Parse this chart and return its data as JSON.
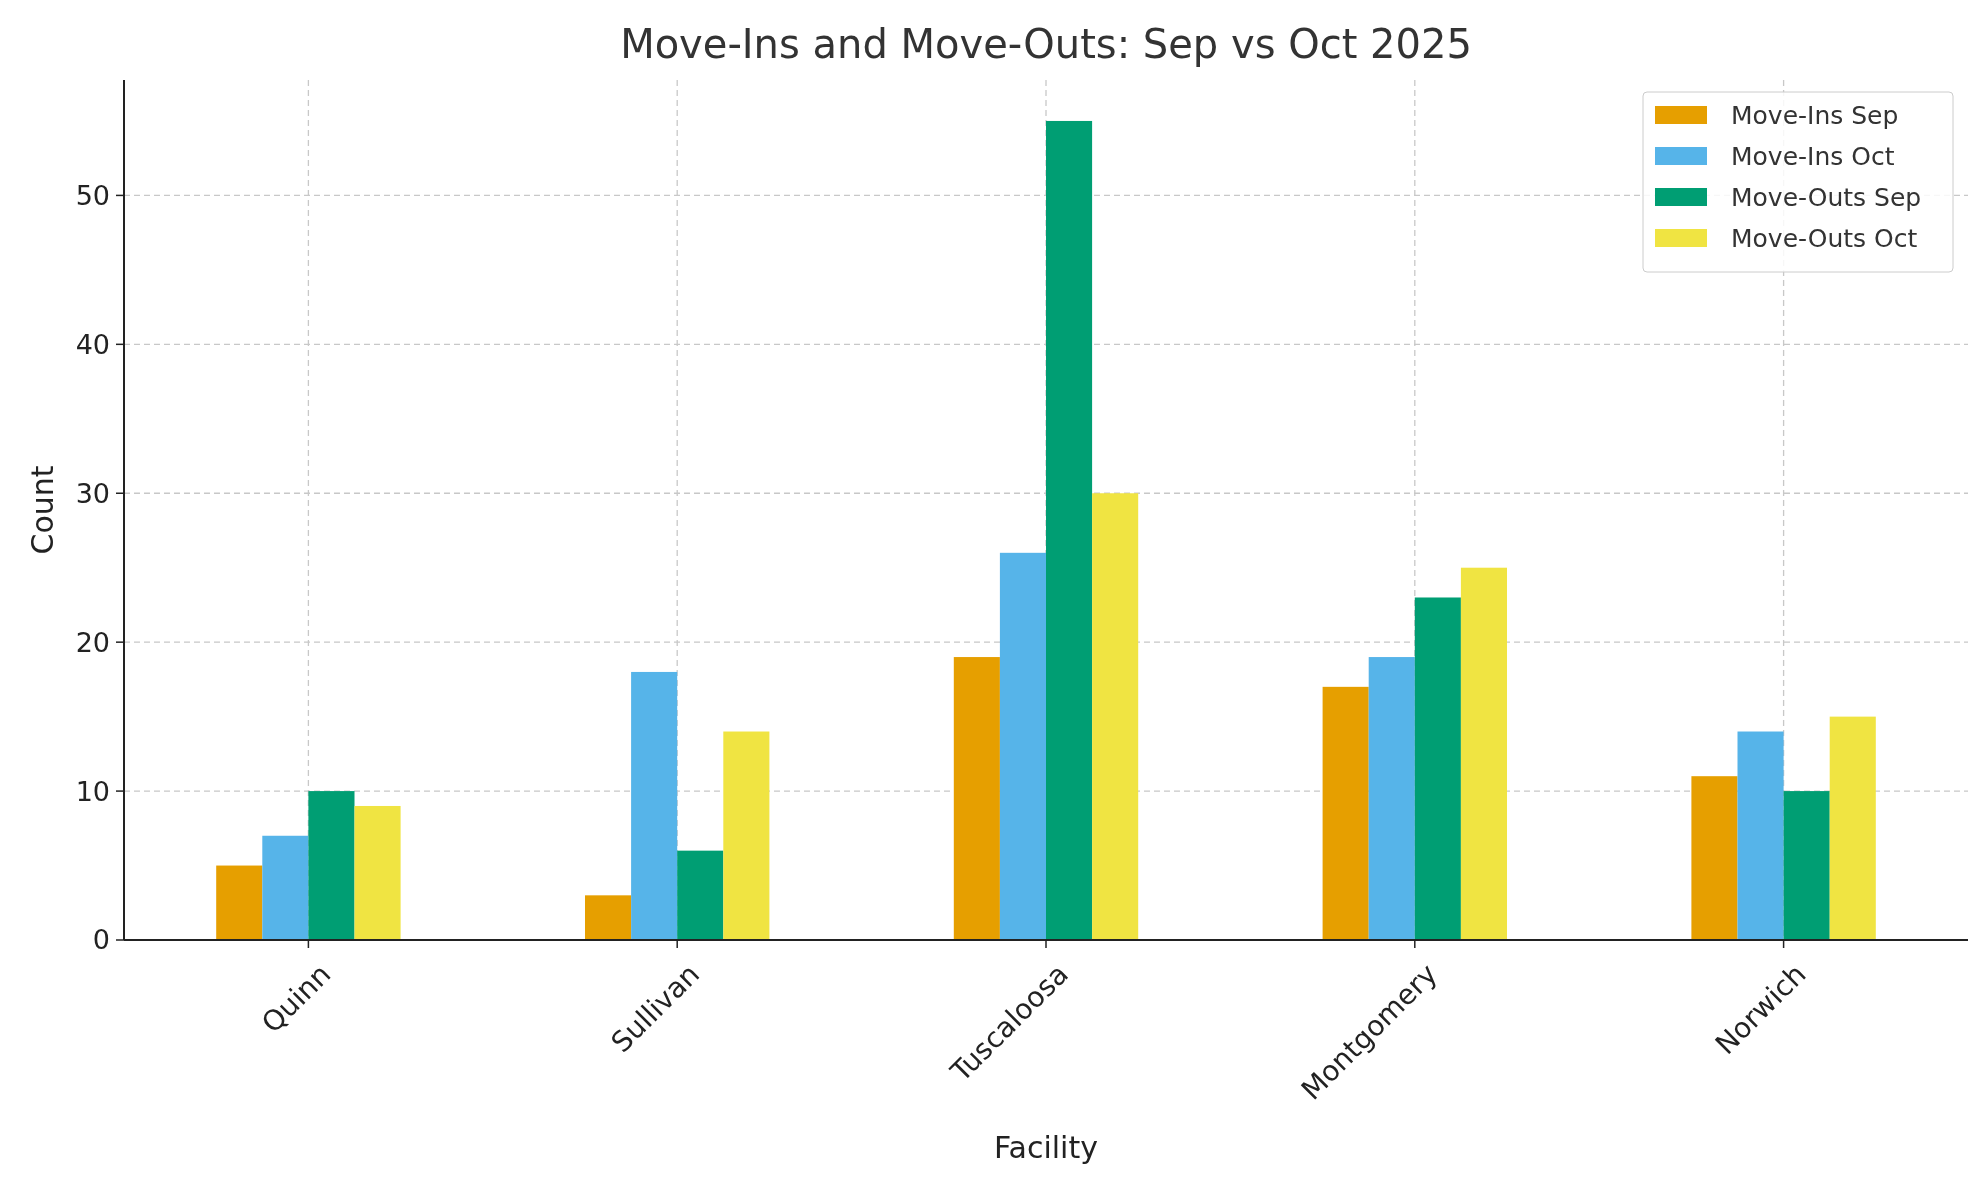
{
  "chart_data": {
    "type": "bar",
    "title": "Move-Ins and Move-Outs: Sep vs Oct 2025",
    "xlabel": "Facility",
    "ylabel": "Count",
    "categories": [
      "Quinn",
      "Sullivan",
      "Tuscaloosa",
      "Montgomery",
      "Norwich"
    ],
    "series": [
      {
        "name": "Move-Ins Sep",
        "color": "#e69f00",
        "values": [
          5,
          3,
          19,
          17,
          11
        ]
      },
      {
        "name": "Move-Ins Oct",
        "color": "#56b4e9",
        "values": [
          7,
          18,
          26,
          19,
          14
        ]
      },
      {
        "name": "Move-Outs Sep",
        "color": "#009e73",
        "values": [
          10,
          6,
          55,
          23,
          10
        ]
      },
      {
        "name": "Move-Outs Oct",
        "color": "#f0e442",
        "values": [
          9,
          14,
          30,
          25,
          15
        ]
      }
    ],
    "ylim": [
      0,
      57.75
    ],
    "yticks": [
      0,
      10,
      20,
      30,
      40,
      50
    ],
    "grid": true,
    "legend": "top right"
  }
}
